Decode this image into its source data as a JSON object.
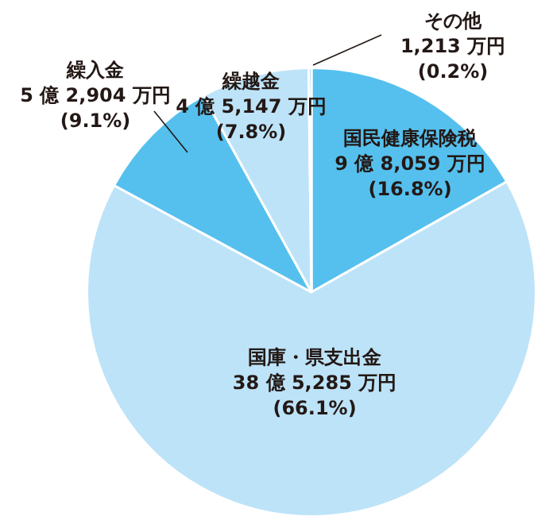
{
  "chart_data": {
    "type": "pie",
    "categories": [
      "国民健康保険税",
      "国庫・県支出金",
      "繰入金",
      "繰越金",
      "その他"
    ],
    "values": [
      16.8,
      66.1,
      9.1,
      7.8,
      0.2
    ],
    "colors": [
      "#55c0ee",
      "#bde3f8",
      "#55c0ee",
      "#bde3f8",
      "#55c0ee"
    ],
    "value_labels": [
      "9 億 8,059 万円\n(16.8%)",
      "38 億 5,285 万円\n(66.1%)",
      "5 億 2,904 万円\n(9.1%)",
      "4 億 5,147 万円\n(7.8%)",
      "1,213 万円\n(0.2%)"
    ],
    "legend": false
  }
}
